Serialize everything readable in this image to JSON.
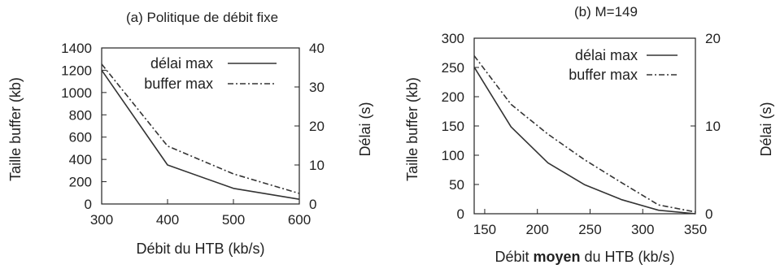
{
  "chart_data": [
    {
      "type": "line",
      "title": "(a)  Politique de débit fixe",
      "xlabel_parts": [
        {
          "text": "Débit du HTB (kb/s)",
          "bold": false
        }
      ],
      "ylabel": "Taille buffer (kb)",
      "y2label": "Délai (s)",
      "xlim": [
        300,
        600
      ],
      "ylim": [
        0,
        1400
      ],
      "y2lim": [
        0,
        40
      ],
      "xticks": [
        "300",
        "400",
        "500",
        "600"
      ],
      "yticks": [
        "0",
        "200",
        "400",
        "600",
        "800",
        "1000",
        "1200",
        "1400"
      ],
      "y2ticks": [
        "0",
        "10",
        "20",
        "30",
        "40"
      ],
      "legend_position": "top-right",
      "grid": false,
      "series": [
        {
          "name": "délai max",
          "axis": "y2",
          "style": "solid",
          "x": [
            300,
            400,
            500,
            600
          ],
          "y": [
            34.3,
            10.0,
            4.0,
            1.2
          ]
        },
        {
          "name": "buffer max",
          "axis": "y",
          "style": "dashdot",
          "x": [
            300,
            400,
            500,
            600
          ],
          "y": [
            1255,
            520,
            270,
            95
          ]
        }
      ]
    },
    {
      "type": "line",
      "title": "(b) M=149",
      "xlabel_parts": [
        {
          "text": "Débit ",
          "bold": false
        },
        {
          "text": "moyen",
          "bold": true
        },
        {
          "text": " du HTB (kb/s)",
          "bold": false
        }
      ],
      "ylabel": "Taille buffer (kb)",
      "y2label": "Délai (s)",
      "xlim": [
        140,
        350
      ],
      "ylim": [
        0,
        300
      ],
      "y2lim": [
        0,
        20
      ],
      "xticks": [
        "150",
        "200",
        "250",
        "300",
        "350"
      ],
      "yticks": [
        "0",
        "50",
        "100",
        "150",
        "200",
        "250",
        "300"
      ],
      "y2ticks": [
        "0",
        "10",
        "20"
      ],
      "legend_position": "top-right",
      "grid": false,
      "series": [
        {
          "name": "délai max",
          "axis": "y2",
          "style": "solid",
          "x": [
            140,
            175,
            210,
            245,
            280,
            315,
            350
          ],
          "y": [
            16.7,
            9.9,
            5.8,
            3.3,
            1.6,
            0.4,
            0.0
          ]
        },
        {
          "name": "buffer max",
          "axis": "y",
          "style": "dashdot",
          "x": [
            140,
            175,
            210,
            245,
            280,
            315,
            350
          ],
          "y": [
            270,
            187,
            136,
            92,
            53,
            15,
            3
          ]
        }
      ]
    }
  ]
}
